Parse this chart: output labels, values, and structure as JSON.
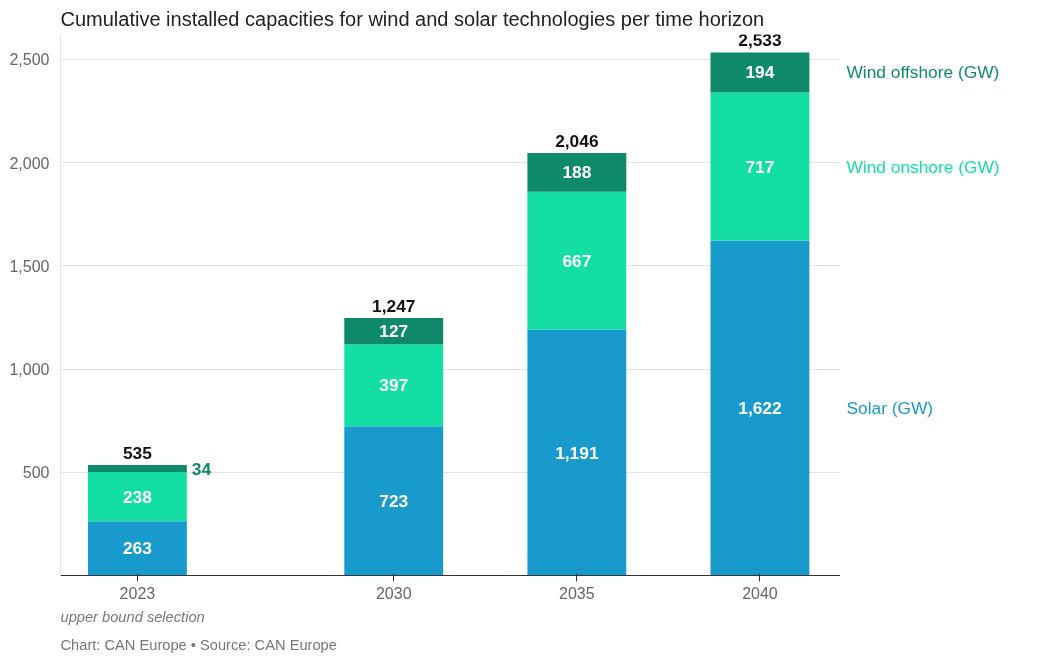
{
  "chart_data": {
    "type": "bar",
    "stacked": true,
    "title": "Cumulative installed capacities for wind and solar technologies per time horizon",
    "x": [
      2023,
      2030,
      2035,
      2040
    ],
    "series": [
      {
        "name": "Solar (GW)",
        "color": "#189bcc",
        "values": [
          263,
          723,
          1191,
          1622
        ],
        "value_labels": [
          "263",
          "723",
          "1,191",
          "1,622"
        ]
      },
      {
        "name": "Wind onshore (GW)",
        "color": "#13dfa5",
        "values": [
          238,
          397,
          667,
          717
        ]
      },
      {
        "name": "Wind offshore (GW)",
        "color": "#0e8a6b",
        "values": [
          34,
          127,
          188,
          194
        ]
      }
    ],
    "totals": [
      "535",
      "1,247",
      "2,046",
      "2,533"
    ],
    "data_labels": true,
    "xlim": [
      2020.9,
      2042.2
    ],
    "xticks": [
      2023,
      2030,
      2035,
      2040
    ],
    "ylim": [
      0,
      2620
    ],
    "yticks": [
      {
        "value": 500,
        "label": "500"
      },
      {
        "value": 1000,
        "label": "1,000"
      },
      {
        "value": 1500,
        "label": "1,500"
      },
      {
        "value": 2000,
        "label": "2,000"
      },
      {
        "value": 2500,
        "label": "2,500"
      }
    ],
    "grid": "y",
    "annotations": [
      "upper bound selection",
      "Chart: CAN Europe • Source: CAN Europe"
    ]
  }
}
